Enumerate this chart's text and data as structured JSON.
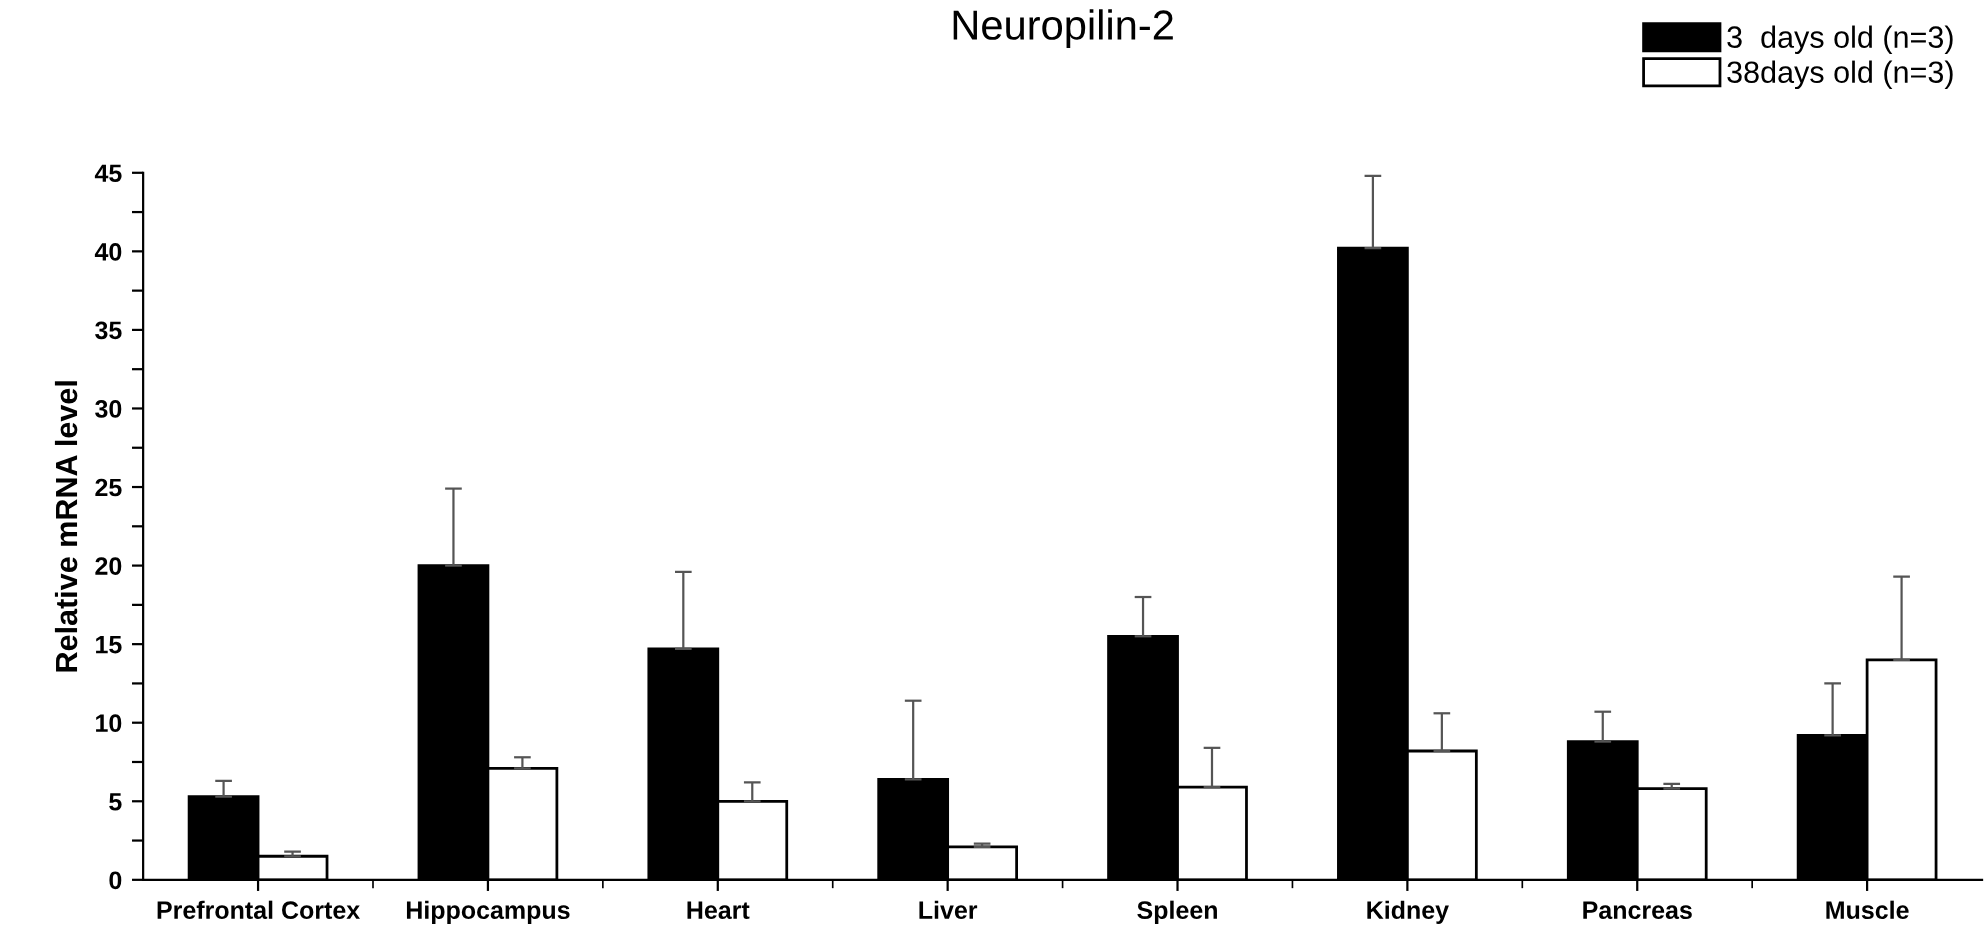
{
  "chart_data": {
    "type": "bar",
    "title": "Neuropilin-2",
    "ylabel": "Relative mRNA level",
    "categories": [
      "Prefrontal Cortex",
      "Hippocampus",
      "Heart",
      "Liver",
      "Spleen",
      "Kidney",
      "Pancreas",
      "Muscle"
    ],
    "series": [
      {
        "name": "3  days old (n=3)",
        "color": "#000000",
        "values": [
          5.3,
          20.0,
          14.7,
          6.4,
          15.5,
          40.2,
          8.8,
          9.2
        ],
        "errors": [
          [
            5.3,
            6.3
          ],
          [
            20.0,
            24.9
          ],
          [
            14.7,
            19.6
          ],
          [
            6.4,
            11.4
          ],
          [
            15.5,
            18.0
          ],
          [
            40.2,
            44.8
          ],
          [
            8.8,
            10.7
          ],
          [
            9.2,
            12.5
          ]
        ]
      },
      {
        "name": "38days old (n=3)",
        "color": "#ffffff",
        "values": [
          1.5,
          7.1,
          5.0,
          2.1,
          5.9,
          8.2,
          5.8,
          14.0
        ],
        "errors": [
          [
            1.5,
            1.8
          ],
          [
            7.1,
            7.8
          ],
          [
            5.0,
            6.2
          ],
          [
            2.1,
            2.3
          ],
          [
            5.9,
            8.4
          ],
          [
            8.2,
            10.6
          ],
          [
            5.8,
            6.1
          ],
          [
            14.0,
            19.3
          ]
        ]
      }
    ],
    "ylim": [
      0,
      45
    ],
    "yticks": [
      0,
      {
        "value": 2.5,
        "label": null
      },
      5,
      {
        "value": 7.5,
        "label": null
      },
      10,
      {
        "value": 12.5,
        "label": null
      },
      15,
      {
        "value": 17.5,
        "label": null
      },
      20,
      {
        "value": 22.5,
        "label": null
      },
      25,
      {
        "value": 27.5,
        "label": null
      },
      30,
      {
        "value": 32.5,
        "label": null
      },
      35,
      {
        "value": 37.5,
        "label": null
      },
      40,
      {
        "value": 42.5,
        "label": null
      },
      45
    ],
    "legend": "top right",
    "grid": false
  }
}
